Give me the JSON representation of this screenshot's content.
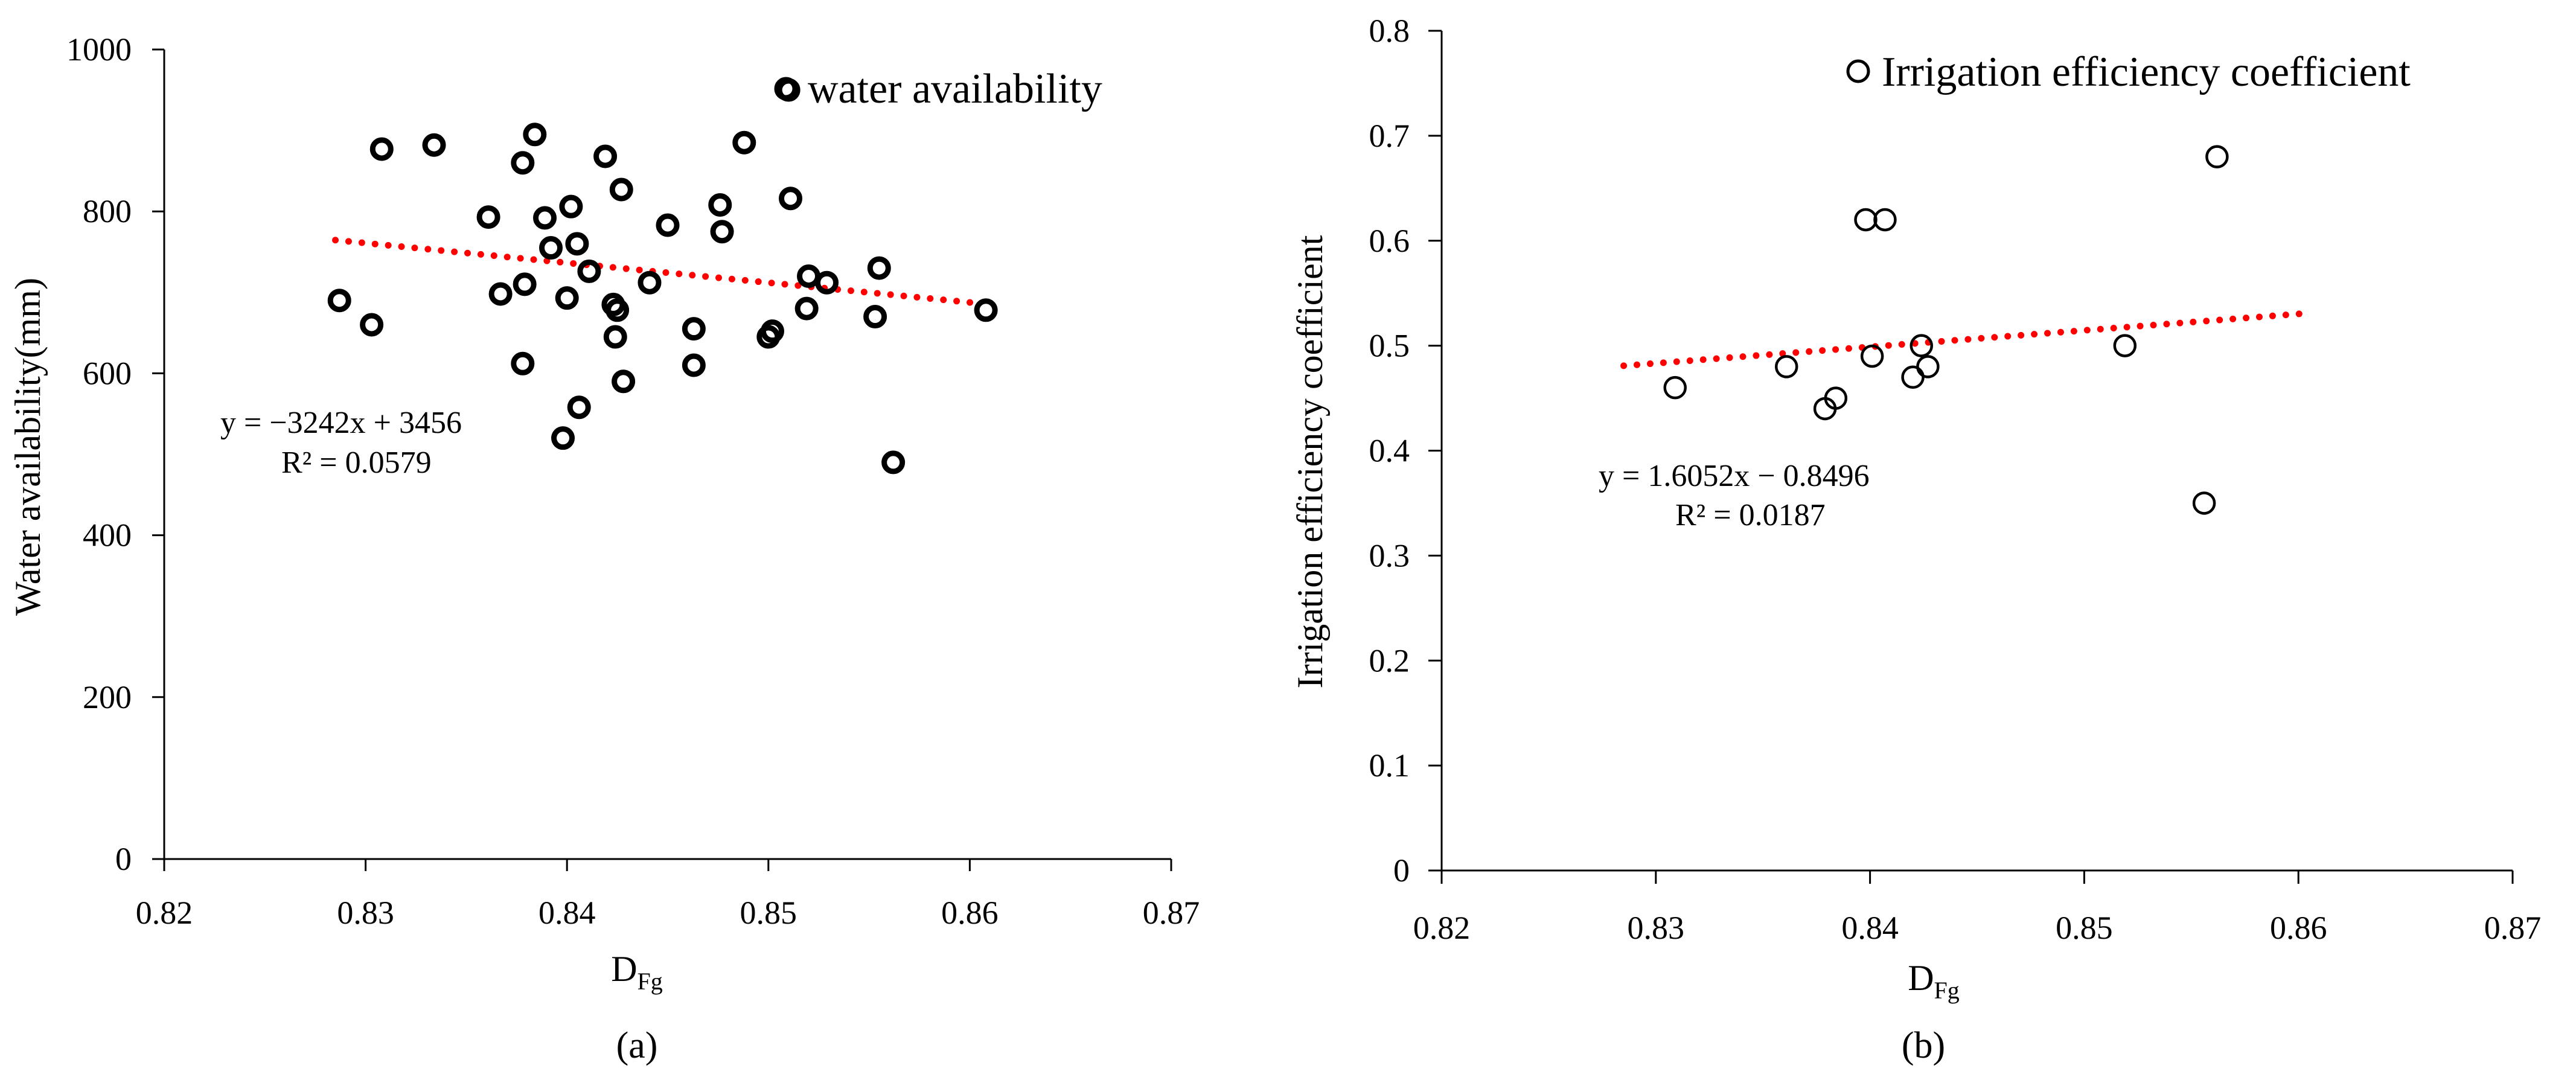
{
  "chart_data": [
    {
      "panel_label": "(a)",
      "type": "scatter",
      "xlabel": "D",
      "xlabel_sub": "Fg",
      "ylabel": "Water availability(mm)",
      "xlim": [
        0.82,
        0.87
      ],
      "ylim": [
        0,
        1000
      ],
      "xticks": [
        "0.82",
        "0.83",
        "0.84",
        "0.85",
        "0.86",
        "0.87"
      ],
      "yticks": [
        "0",
        "200",
        "400",
        "600",
        "800",
        "1000"
      ],
      "legend": "water availability",
      "marker_style": "bold-open-circle",
      "series": [
        {
          "name": "water availability",
          "points": [
            [
              0.8287,
              690
            ],
            [
              0.8303,
              660
            ],
            [
              0.8308,
              877
            ],
            [
              0.8334,
              882
            ],
            [
              0.8361,
              793
            ],
            [
              0.8367,
              698
            ],
            [
              0.8378,
              612
            ],
            [
              0.8379,
              710
            ],
            [
              0.8378,
              860
            ],
            [
              0.8384,
              895
            ],
            [
              0.8389,
              792
            ],
            [
              0.8392,
              755
            ],
            [
              0.8398,
              520
            ],
            [
              0.84,
              693
            ],
            [
              0.8402,
              806
            ],
            [
              0.8405,
              760
            ],
            [
              0.8406,
              558
            ],
            [
              0.8411,
              726
            ],
            [
              0.8419,
              868
            ],
            [
              0.8423,
              685
            ],
            [
              0.8424,
              645
            ],
            [
              0.8425,
              678
            ],
            [
              0.8427,
              827
            ],
            [
              0.8428,
              590
            ],
            [
              0.8441,
              712
            ],
            [
              0.845,
              783
            ],
            [
              0.8463,
              655
            ],
            [
              0.8463,
              610
            ],
            [
              0.8476,
              808
            ],
            [
              0.8477,
              775
            ],
            [
              0.8488,
              885
            ],
            [
              0.85,
              645
            ],
            [
              0.8502,
              652
            ],
            [
              0.851,
              950
            ],
            [
              0.8511,
              816
            ],
            [
              0.8519,
              680
            ],
            [
              0.852,
              720
            ],
            [
              0.8529,
              712
            ],
            [
              0.8553,
              670
            ],
            [
              0.8555,
              730
            ],
            [
              0.8562,
              490
            ],
            [
              0.8608,
              678
            ]
          ]
        }
      ],
      "trendline": {
        "x": [
          0.8285,
          0.8605
        ],
        "color": "#ff0000",
        "style": "dotted"
      },
      "equation": "y = −3242x + 3456",
      "r_squared": "R² = 0.0579"
    },
    {
      "panel_label": "(b)",
      "type": "scatter",
      "xlabel": "D",
      "xlabel_sub": "Fg",
      "ylabel": "Irrigation efficiency coefficient",
      "xlim": [
        0.82,
        0.87
      ],
      "ylim": [
        0,
        0.8
      ],
      "xticks": [
        "0.82",
        "0.83",
        "0.84",
        "0.85",
        "0.86",
        "0.87"
      ],
      "yticks": [
        "0",
        "0.1",
        "0.2",
        "0.3",
        "0.4",
        "0.5",
        "0.6",
        "0.7",
        "0.8"
      ],
      "legend": "Irrigation efficiency coefficient",
      "marker_style": "open-circle",
      "series": [
        {
          "name": "Irrigation efficiency coefficient",
          "points": [
            [
              0.8309,
              0.46
            ],
            [
              0.8361,
              0.48
            ],
            [
              0.8379,
              0.44
            ],
            [
              0.8384,
              0.45
            ],
            [
              0.8398,
              0.62
            ],
            [
              0.8401,
              0.49
            ],
            [
              0.8407,
              0.62
            ],
            [
              0.842,
              0.47
            ],
            [
              0.8424,
              0.5
            ],
            [
              0.8427,
              0.48
            ],
            [
              0.8519,
              0.5
            ],
            [
              0.8556,
              0.35
            ],
            [
              0.8562,
              0.68
            ]
          ]
        }
      ],
      "trendline": {
        "x": [
          0.8285,
          0.8605
        ],
        "color": "#ff0000",
        "style": "dotted"
      },
      "equation": "y = 1.6052x − 0.8496",
      "r_squared": "R² = 0.0187"
    }
  ]
}
